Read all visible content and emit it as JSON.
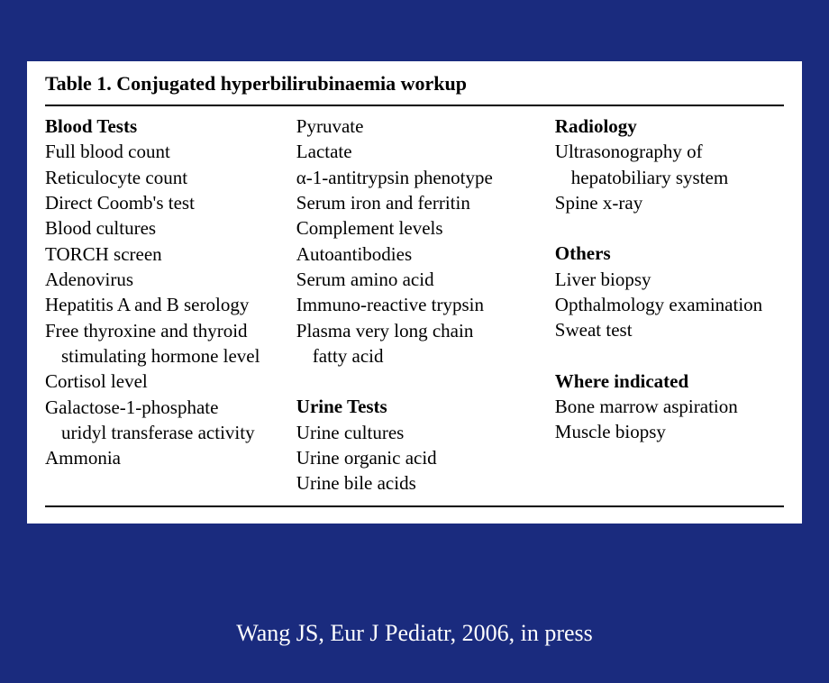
{
  "colors": {
    "background": "#1a2b7e",
    "tableBg": "#ffffff",
    "text": "#000000",
    "citation": "#ffffff",
    "ruleColor": "#000000"
  },
  "typography": {
    "titleFontSize": 22,
    "bodyFontSize": 21,
    "citationFontSize": 26,
    "fontFamily": "Times New Roman"
  },
  "table": {
    "title": "Table 1. Conjugated hyperbilirubinaemia workup",
    "col1": {
      "header": "Blood Tests",
      "items": [
        "Full blood count",
        "Reticulocyte count",
        "Direct Coomb's test",
        "Blood cultures",
        "TORCH screen",
        "Adenovirus",
        "Hepatitis A and B serology",
        "Free thyroxine and thyroid",
        "stimulating hormone level",
        "Cortisol level",
        "Galactose-1-phosphate",
        "uridyl transferase activity",
        "Ammonia"
      ],
      "indentIndexes": [
        8,
        11
      ]
    },
    "col2": {
      "topItems": [
        "Pyruvate",
        "Lactate",
        "α-1-antitrypsin phenotype",
        "Serum iron and ferritin",
        "Complement levels",
        "Autoantibodies",
        "Serum amino acid",
        "Immuno-reactive trypsin",
        "Plasma very long chain",
        "fatty acid"
      ],
      "topIndentIndexes": [
        9
      ],
      "header2": "Urine Tests",
      "items2": [
        "Urine cultures",
        "Urine organic acid",
        "Urine bile acids"
      ]
    },
    "col3": {
      "header1": "Radiology",
      "items1": [
        "Ultrasonography of",
        "hepatobiliary system",
        "Spine x-ray"
      ],
      "indent1": [
        1
      ],
      "header2": "Others",
      "items2": [
        "Liver biopsy",
        "Opthalmology examination",
        "Sweat test"
      ],
      "header3": "Where indicated",
      "items3": [
        "Bone marrow aspiration",
        "Muscle biopsy"
      ]
    }
  },
  "citation": "Wang JS, Eur J Pediatr, 2006, in press"
}
